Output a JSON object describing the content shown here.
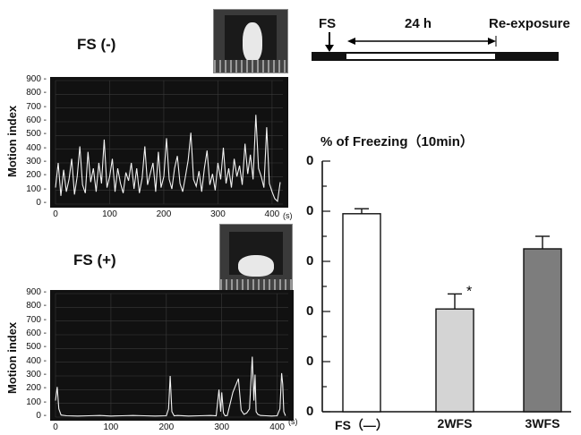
{
  "traces": [
    {
      "id": "fs-minus",
      "title": "FS (-)",
      "ylabel": "Motion index",
      "yticks": [
        "0",
        "100",
        "200",
        "300",
        "400",
        "500",
        "600",
        "700",
        "800",
        "900"
      ],
      "xticks": [
        "0",
        "100",
        "200",
        "300",
        "400"
      ],
      "xunit": "(s)",
      "photo_icon": "rat-exploring-photo-icon"
    },
    {
      "id": "fs-plus",
      "title": "FS (+)",
      "ylabel": "Motion index",
      "yticks": [
        "0",
        "100",
        "200",
        "300",
        "400",
        "500",
        "600",
        "700",
        "800",
        "900"
      ],
      "xticks": [
        "0",
        "100",
        "200",
        "300",
        "400"
      ],
      "xunit": "(s)",
      "photo_icon": "rat-freezing-photo-icon"
    }
  ],
  "protocol": {
    "fs_label": "FS",
    "interval_label": "24 h",
    "reexposure_label": "Re-exposure"
  },
  "chart_data": [
    {
      "type": "line",
      "title": "FS (-)",
      "xlabel": "(s)",
      "ylabel": "Motion index",
      "xlim": [
        0,
        420
      ],
      "ylim": [
        0,
        900
      ],
      "series": [
        {
          "x": [
            0,
            5,
            10,
            15,
            20,
            25,
            30,
            35,
            40,
            45,
            50,
            55,
            60,
            65,
            70,
            75,
            80,
            85,
            90,
            95,
            100,
            105,
            110,
            115,
            120,
            125,
            130,
            135,
            140,
            145,
            150,
            155,
            160,
            165,
            170,
            175,
            180,
            185,
            190,
            195,
            200,
            205,
            210,
            215,
            220,
            225,
            230,
            235,
            240,
            245,
            250,
            255,
            260,
            265,
            270,
            275,
            280,
            285,
            290,
            295,
            300,
            305,
            310,
            315,
            320,
            325,
            330,
            335,
            340,
            345,
            350,
            355,
            360,
            365,
            370,
            375,
            380,
            385,
            390,
            395,
            400,
            405,
            410,
            415
          ],
          "y": [
            120,
            300,
            60,
            250,
            90,
            180,
            330,
            70,
            200,
            420,
            140,
            80,
            380,
            160,
            260,
            90,
            300,
            150,
            470,
            120,
            200,
            330,
            90,
            260,
            150,
            80,
            230,
            170,
            300,
            110,
            260,
            80,
            190,
            420,
            140,
            220,
            300,
            90,
            380,
            120,
            200,
            480,
            180,
            110,
            260,
            350,
            150,
            90,
            200,
            320,
            520,
            180,
            130,
            240,
            90,
            260,
            390,
            140,
            220,
            100,
            300,
            180,
            410,
            150,
            260,
            120,
            330,
            200,
            280,
            140,
            440,
            220,
            360,
            180,
            650,
            260,
            200,
            120,
            560,
            150,
            90,
            40,
            20,
            160
          ]
        }
      ]
    },
    {
      "type": "line",
      "title": "FS (+)",
      "xlabel": "(s)",
      "ylabel": "Motion index",
      "xlim": [
        0,
        420
      ],
      "ylim": [
        0,
        900
      ],
      "series": [
        {
          "x": [
            0,
            3,
            6,
            10,
            20,
            40,
            60,
            80,
            100,
            120,
            140,
            160,
            180,
            200,
            204,
            207,
            210,
            214,
            220,
            240,
            260,
            280,
            290,
            295,
            298,
            300,
            303,
            306,
            310,
            320,
            330,
            335,
            340,
            345,
            350,
            355,
            358,
            360,
            362,
            365,
            370,
            380,
            390,
            400,
            405,
            408,
            410,
            412,
            415
          ],
          "y": [
            120,
            220,
            60,
            15,
            10,
            8,
            10,
            12,
            8,
            10,
            12,
            10,
            8,
            10,
            60,
            300,
            40,
            10,
            12,
            8,
            10,
            12,
            10,
            200,
            40,
            180,
            30,
            10,
            12,
            180,
            280,
            50,
            20,
            30,
            60,
            440,
            120,
            310,
            40,
            20,
            12,
            10,
            8,
            10,
            60,
            320,
            240,
            40,
            10
          ]
        }
      ]
    },
    {
      "type": "bar",
      "title": "% of Freezing（10min）",
      "xlabel": "",
      "ylabel": "",
      "categories": [
        "FS（—）",
        "2WFS",
        "3WFS"
      ],
      "yticks": [
        "0",
        "0",
        "0",
        "0",
        "0",
        "0"
      ],
      "ylim": [
        0,
        100
      ],
      "series": [
        {
          "values": [
            79,
            41,
            65
          ],
          "errors": [
            2,
            6,
            5
          ],
          "colors": [
            "#ffffff",
            "#d4d4d4",
            "#7d7d7d"
          ],
          "significance": [
            "",
            "*",
            ""
          ]
        }
      ]
    }
  ]
}
